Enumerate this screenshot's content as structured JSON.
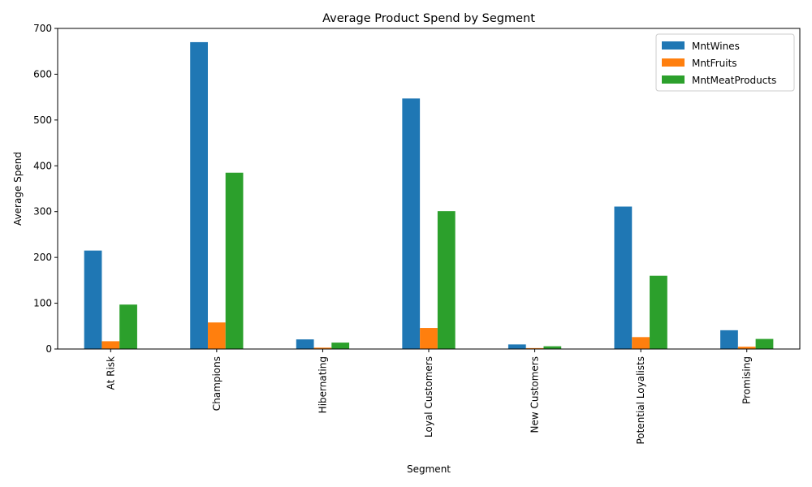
{
  "chart_data": {
    "type": "bar",
    "title": "Average Product Spend by Segment",
    "xlabel": "Segment",
    "ylabel": "Average Spend",
    "categories": [
      "At Risk",
      "Champions",
      "Hibernating",
      "Loyal Customers",
      "New Customers",
      "Potential Loyalists",
      "Promising"
    ],
    "series": [
      {
        "name": "MntWines",
        "color": "#1f77b4",
        "values": [
          215,
          670,
          21,
          547,
          10,
          311,
          41
        ]
      },
      {
        "name": "MntFruits",
        "color": "#ff7f0e",
        "values": [
          17,
          58,
          3,
          46,
          2,
          26,
          5
        ]
      },
      {
        "name": "MntMeatProducts",
        "color": "#2ca02c",
        "values": [
          97,
          385,
          14,
          301,
          6,
          160,
          22
        ]
      }
    ],
    "ylim": [
      0,
      700
    ],
    "yticks": [
      0,
      100,
      200,
      300,
      400,
      500,
      600,
      700
    ],
    "grid": false,
    "legend": "top-right"
  }
}
